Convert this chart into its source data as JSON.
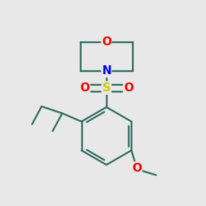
{
  "bg_color": "#e8e8e8",
  "bond_color": "#2d6b5e",
  "bond_width": 1.8,
  "atom_colors": {
    "O": "#ff0000",
    "N": "#0000ff",
    "S": "#cccc00"
  },
  "figsize": [
    3.0,
    3.0
  ],
  "dpi": 100
}
